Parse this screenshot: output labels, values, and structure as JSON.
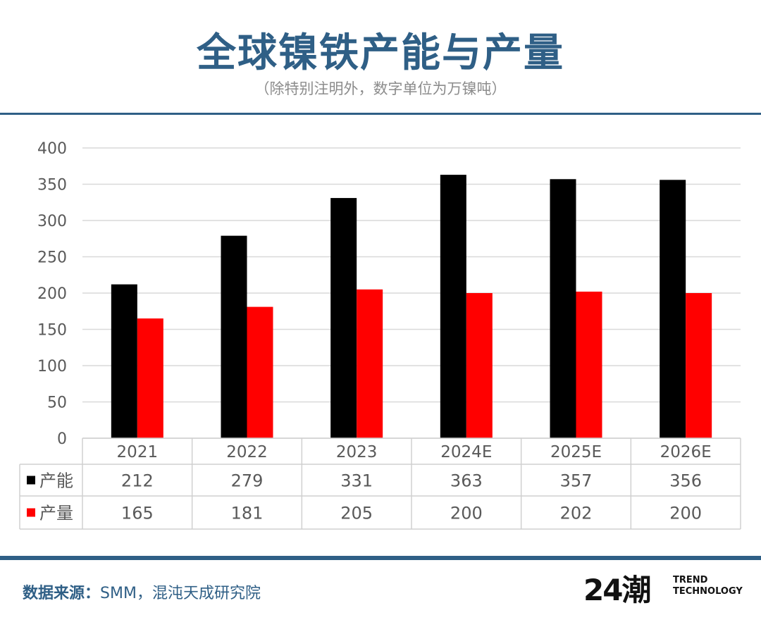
{
  "header": {
    "title": "全球镍铁产能与产量",
    "subtitle": "（除特别注明外，数字单位为万镍吨）"
  },
  "footer": {
    "source_label": "数据来源：",
    "source_text": "SMM，混沌天成研究院",
    "logo_mark": "24潮",
    "logo_line1": "TREND",
    "logo_line2": "TECHNOLOGY"
  },
  "colors": {
    "brand": "#2f5f86",
    "capacity": "#000000",
    "production": "#ff0000",
    "grid": "#d9d9d9"
  },
  "chart_data": {
    "type": "bar",
    "categories": [
      "2021",
      "2022",
      "2023",
      "2024E",
      "2025E",
      "2026E"
    ],
    "series": [
      {
        "name": "产能",
        "values": [
          212,
          279,
          331,
          363,
          357,
          356
        ]
      },
      {
        "name": "产量",
        "values": [
          165,
          181,
          205,
          200,
          202,
          200
        ]
      }
    ],
    "yticks": [
      0,
      50,
      100,
      150,
      200,
      250,
      300,
      350,
      400
    ],
    "ylim": [
      0,
      400
    ],
    "grid": true,
    "legend": "data-table",
    "table": {
      "rows": [
        [
          "212",
          "279",
          "331",
          "363",
          "357",
          "356"
        ],
        [
          "165",
          "181",
          "205",
          "200",
          "202",
          "200"
        ]
      ]
    }
  }
}
